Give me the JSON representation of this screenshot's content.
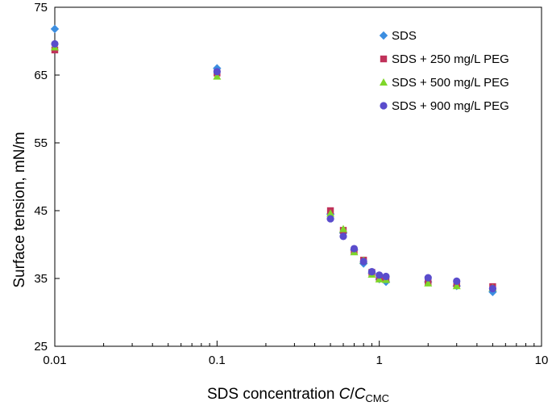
{
  "chart_data": {
    "type": "scatter",
    "title": "",
    "xlabel": {
      "prefix": "SDS concentration ",
      "c1": "C",
      "slash": "/",
      "c2": "C",
      "sub": "CMC"
    },
    "ylabel": "Surface tension, mN/m",
    "x_scale": "log",
    "xlim": [
      0.01,
      10
    ],
    "ylim": [
      25,
      75
    ],
    "x_ticks": [
      0.01,
      0.1,
      1,
      10
    ],
    "x_tick_labels": [
      "0.01",
      "0.1",
      "1",
      "10"
    ],
    "y_ticks": [
      25,
      35,
      45,
      55,
      65,
      75
    ],
    "y_tick_labels": [
      "25",
      "35",
      "45",
      "55",
      "65",
      "75"
    ],
    "grid": false,
    "legend_position": "top-right",
    "series": [
      {
        "name": "SDS",
        "marker": "diamond",
        "color": "#3c8ee0",
        "points": [
          [
            0.01,
            71.8
          ],
          [
            0.1,
            66.0
          ],
          [
            0.5,
            44.5
          ],
          [
            0.6,
            41.7
          ],
          [
            0.7,
            39.2
          ],
          [
            0.8,
            37.2
          ],
          [
            0.9,
            35.8
          ],
          [
            1.0,
            34.9
          ],
          [
            1.1,
            34.5
          ],
          [
            2.0,
            34.5
          ],
          [
            3.0,
            33.9
          ],
          [
            5.0,
            33.0
          ]
        ]
      },
      {
        "name": "SDS + 250 mg/L PEG",
        "marker": "square",
        "color": "#c0325a",
        "points": [
          [
            0.01,
            68.7
          ],
          [
            0.1,
            65.3
          ],
          [
            0.5,
            45.0
          ],
          [
            0.6,
            42.1
          ],
          [
            0.7,
            39.0
          ],
          [
            0.8,
            37.7
          ],
          [
            0.9,
            35.9
          ],
          [
            1.0,
            35.0
          ],
          [
            1.1,
            34.9
          ],
          [
            2.0,
            34.5
          ],
          [
            3.0,
            34.2
          ],
          [
            5.0,
            33.8
          ]
        ]
      },
      {
        "name": "SDS + 500 mg/L PEG",
        "marker": "triangle",
        "color": "#7fd62a",
        "points": [
          [
            0.01,
            69.1
          ],
          [
            0.1,
            64.8
          ],
          [
            0.5,
            44.6
          ],
          [
            0.6,
            42.3
          ],
          [
            0.7,
            38.9
          ],
          [
            0.8,
            37.7
          ],
          [
            0.9,
            35.6
          ],
          [
            1.0,
            34.9
          ],
          [
            1.1,
            34.8
          ],
          [
            2.0,
            34.3
          ],
          [
            3.0,
            33.9
          ],
          [
            5.0,
            33.6
          ]
        ]
      },
      {
        "name": "SDS + 900 mg/L PEG",
        "marker": "circle",
        "color": "#5a4ccc",
        "points": [
          [
            0.01,
            69.6
          ],
          [
            0.1,
            65.5
          ],
          [
            0.5,
            43.8
          ],
          [
            0.6,
            41.2
          ],
          [
            0.7,
            39.4
          ],
          [
            0.8,
            37.5
          ],
          [
            0.9,
            36.0
          ],
          [
            1.0,
            35.5
          ],
          [
            1.1,
            35.3
          ],
          [
            2.0,
            35.1
          ],
          [
            3.0,
            34.6
          ],
          [
            5.0,
            33.5
          ]
        ]
      }
    ]
  }
}
